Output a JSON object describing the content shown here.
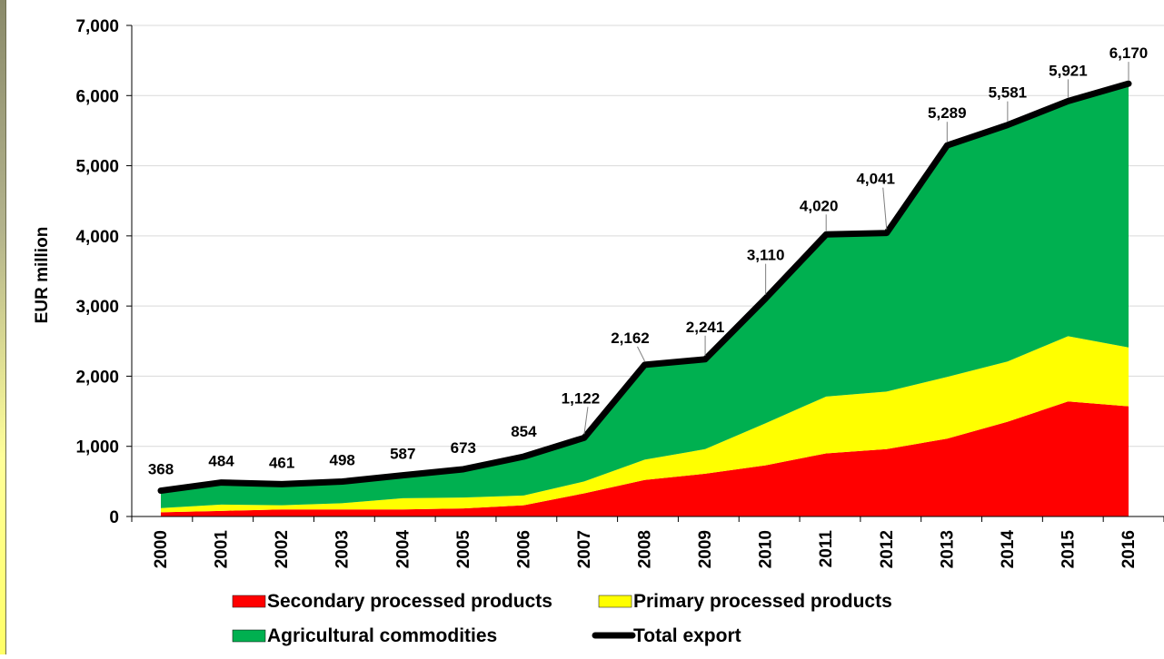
{
  "chart_data": {
    "type": "area",
    "ylabel": "EUR million",
    "xlabel": "",
    "ylim": [
      0,
      7000
    ],
    "yticks": [
      "0",
      "1,000",
      "2,000",
      "3,000",
      "4,000",
      "5,000",
      "6,000",
      "7,000"
    ],
    "ytick_values": [
      0,
      1000,
      2000,
      3000,
      4000,
      5000,
      6000,
      7000
    ],
    "grid": true,
    "legend_position": "bottom",
    "categories": [
      "2000",
      "2001",
      "2002",
      "2003",
      "2004",
      "2005",
      "2006",
      "2007",
      "2008",
      "2009",
      "2010",
      "2011",
      "2012",
      "2013",
      "2014",
      "2015",
      "2016"
    ],
    "series": [
      {
        "name": "Secondary processed products",
        "color": "#ff0000",
        "stacked": true,
        "values": [
          60,
          80,
          100,
          100,
          100,
          115,
          160,
          330,
          520,
          610,
          730,
          900,
          960,
          1110,
          1350,
          1640,
          1570
        ]
      },
      {
        "name": "Primary processed products",
        "color": "#ffff00",
        "stacked": true,
        "values": [
          60,
          90,
          60,
          90,
          160,
          155,
          140,
          170,
          290,
          350,
          600,
          810,
          820,
          880,
          860,
          930,
          840
        ]
      },
      {
        "name": "Agricultural commodities",
        "color": "#00b050",
        "stacked": true,
        "values": [
          248,
          314,
          301,
          308,
          327,
          403,
          554,
          622,
          1352,
          1281,
          1780,
          2310,
          2261,
          3299,
          3371,
          3351,
          3760
        ]
      },
      {
        "name": "Total export",
        "color": "#000000",
        "type": "line",
        "values": [
          368,
          484,
          461,
          498,
          587,
          673,
          854,
          1122,
          2162,
          2241,
          3110,
          4020,
          4041,
          5289,
          5581,
          5921,
          6170
        ],
        "labels": [
          "368",
          "484",
          "461",
          "498",
          "587",
          "673",
          "854",
          "1,122",
          "2,162",
          "2,241",
          "3,110",
          "4,020",
          "4,041",
          "5,289",
          "5,581",
          "5,921",
          "6,170"
        ]
      }
    ]
  }
}
